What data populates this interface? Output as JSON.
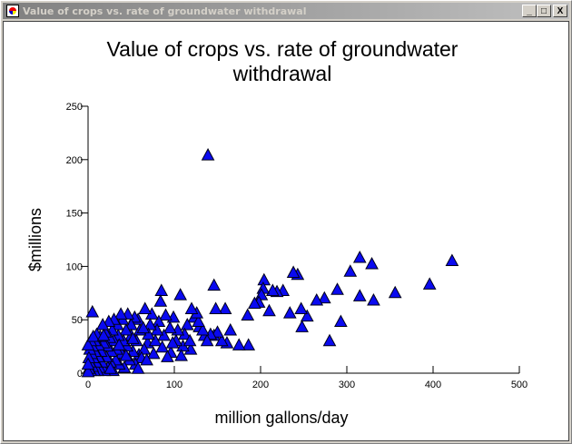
{
  "window": {
    "title": "Value of crops vs. rate of groundwater withdrawal",
    "controls": {
      "minimize": "_",
      "maximize": "□",
      "close": "X"
    }
  },
  "chart_data": {
    "type": "scatter",
    "title": [
      "Value of crops vs. rate of groundwater",
      "withdrawal"
    ],
    "xlabel": "million gallons/day",
    "ylabel": "$millions",
    "xlim": [
      0,
      500
    ],
    "ylim": [
      0,
      250
    ],
    "xticks": [
      "0",
      "100",
      "200",
      "300",
      "400",
      "500"
    ],
    "yticks": [
      "0",
      "50",
      "100",
      "150",
      "200",
      "250"
    ],
    "marker": "triangle",
    "marker_color": "#0a0af0",
    "grid": false,
    "points": [
      [
        139,
        204
      ],
      [
        422,
        105
      ],
      [
        396,
        83
      ],
      [
        356,
        75
      ],
      [
        331,
        68
      ],
      [
        329,
        102
      ],
      [
        315,
        72
      ],
      [
        315,
        108
      ],
      [
        304,
        95
      ],
      [
        289,
        78
      ],
      [
        293,
        48
      ],
      [
        280,
        30
      ],
      [
        274,
        70
      ],
      [
        265,
        68
      ],
      [
        254,
        53
      ],
      [
        247,
        60
      ],
      [
        248,
        43
      ],
      [
        243,
        92
      ],
      [
        238,
        94
      ],
      [
        234,
        56
      ],
      [
        226,
        77
      ],
      [
        219,
        76
      ],
      [
        214,
        77
      ],
      [
        210,
        58
      ],
      [
        204,
        87
      ],
      [
        203,
        79
      ],
      [
        201,
        73
      ],
      [
        198,
        66
      ],
      [
        193,
        65
      ],
      [
        186,
        26
      ],
      [
        185,
        54
      ],
      [
        175,
        26
      ],
      [
        161,
        28
      ],
      [
        159,
        60
      ],
      [
        148,
        60
      ],
      [
        146,
        82
      ],
      [
        146,
        35
      ],
      [
        135,
        35
      ],
      [
        107,
        73
      ],
      [
        99,
        52
      ],
      [
        123,
        52
      ],
      [
        129,
        43
      ],
      [
        119,
        22
      ],
      [
        96,
        19
      ],
      [
        69,
        28
      ],
      [
        59,
        17
      ],
      [
        5,
        57
      ],
      [
        165,
        40
      ],
      [
        155,
        30
      ],
      [
        150,
        38
      ],
      [
        142,
        36
      ],
      [
        138,
        30
      ],
      [
        133,
        40
      ],
      [
        128,
        48
      ],
      [
        126,
        56
      ],
      [
        120,
        60
      ],
      [
        115,
        45
      ],
      [
        112,
        36
      ],
      [
        110,
        25
      ],
      [
        104,
        40
      ],
      [
        102,
        30
      ],
      [
        95,
        42
      ],
      [
        90,
        54
      ],
      [
        88,
        35
      ],
      [
        85,
        77
      ],
      [
        84,
        67
      ],
      [
        82,
        48
      ],
      [
        80,
        40
      ],
      [
        78,
        30
      ],
      [
        76,
        18
      ],
      [
        74,
        55
      ],
      [
        72,
        45
      ],
      [
        70,
        36
      ],
      [
        66,
        60
      ],
      [
        65,
        22
      ],
      [
        62,
        14
      ],
      [
        60,
        40
      ],
      [
        58,
        50
      ],
      [
        56,
        30
      ],
      [
        55,
        8
      ],
      [
        54,
        52
      ],
      [
        52,
        20
      ],
      [
        50,
        45
      ],
      [
        50,
        35
      ],
      [
        48,
        12
      ],
      [
        46,
        55
      ],
      [
        45,
        25
      ],
      [
        44,
        40
      ],
      [
        42,
        5
      ],
      [
        41,
        30
      ],
      [
        40,
        50
      ],
      [
        39,
        18
      ],
      [
        38,
        55
      ],
      [
        36,
        8
      ],
      [
        35,
        35
      ],
      [
        34,
        45
      ],
      [
        33,
        22
      ],
      [
        32,
        12
      ],
      [
        30,
        50
      ],
      [
        30,
        30
      ],
      [
        29,
        2
      ],
      [
        28,
        40
      ],
      [
        27,
        20
      ],
      [
        26,
        10
      ],
      [
        25,
        33
      ],
      [
        24,
        48
      ],
      [
        23,
        5
      ],
      [
        22,
        25
      ],
      [
        21,
        15
      ],
      [
        20,
        38
      ],
      [
        19,
        2
      ],
      [
        18,
        28
      ],
      [
        17,
        45
      ],
      [
        16,
        10
      ],
      [
        15,
        20
      ],
      [
        14,
        34
      ],
      [
        13,
        5
      ],
      [
        12,
        15
      ],
      [
        12,
        26
      ],
      [
        11,
        2
      ],
      [
        10,
        36
      ],
      [
        9,
        10
      ],
      [
        8,
        20
      ],
      [
        8,
        30
      ],
      [
        7,
        2
      ],
      [
        6,
        14
      ],
      [
        5,
        25
      ],
      [
        5,
        6
      ],
      [
        4,
        18
      ],
      [
        3,
        2
      ],
      [
        3,
        30
      ],
      [
        2,
        10
      ],
      [
        2,
        22
      ],
      [
        1,
        4
      ],
      [
        1,
        14
      ],
      [
        0,
        1
      ],
      [
        0,
        8
      ],
      [
        0,
        26
      ],
      [
        6,
        34
      ],
      [
        18,
        35
      ],
      [
        26,
        4
      ],
      [
        36,
        26
      ],
      [
        44,
        16
      ],
      [
        52,
        32
      ],
      [
        58,
        4
      ],
      [
        64,
        42
      ],
      [
        68,
        12
      ],
      [
        86,
        24
      ],
      [
        92,
        15
      ],
      [
        98,
        28
      ],
      [
        108,
        16
      ],
      [
        118,
        30
      ]
    ]
  }
}
